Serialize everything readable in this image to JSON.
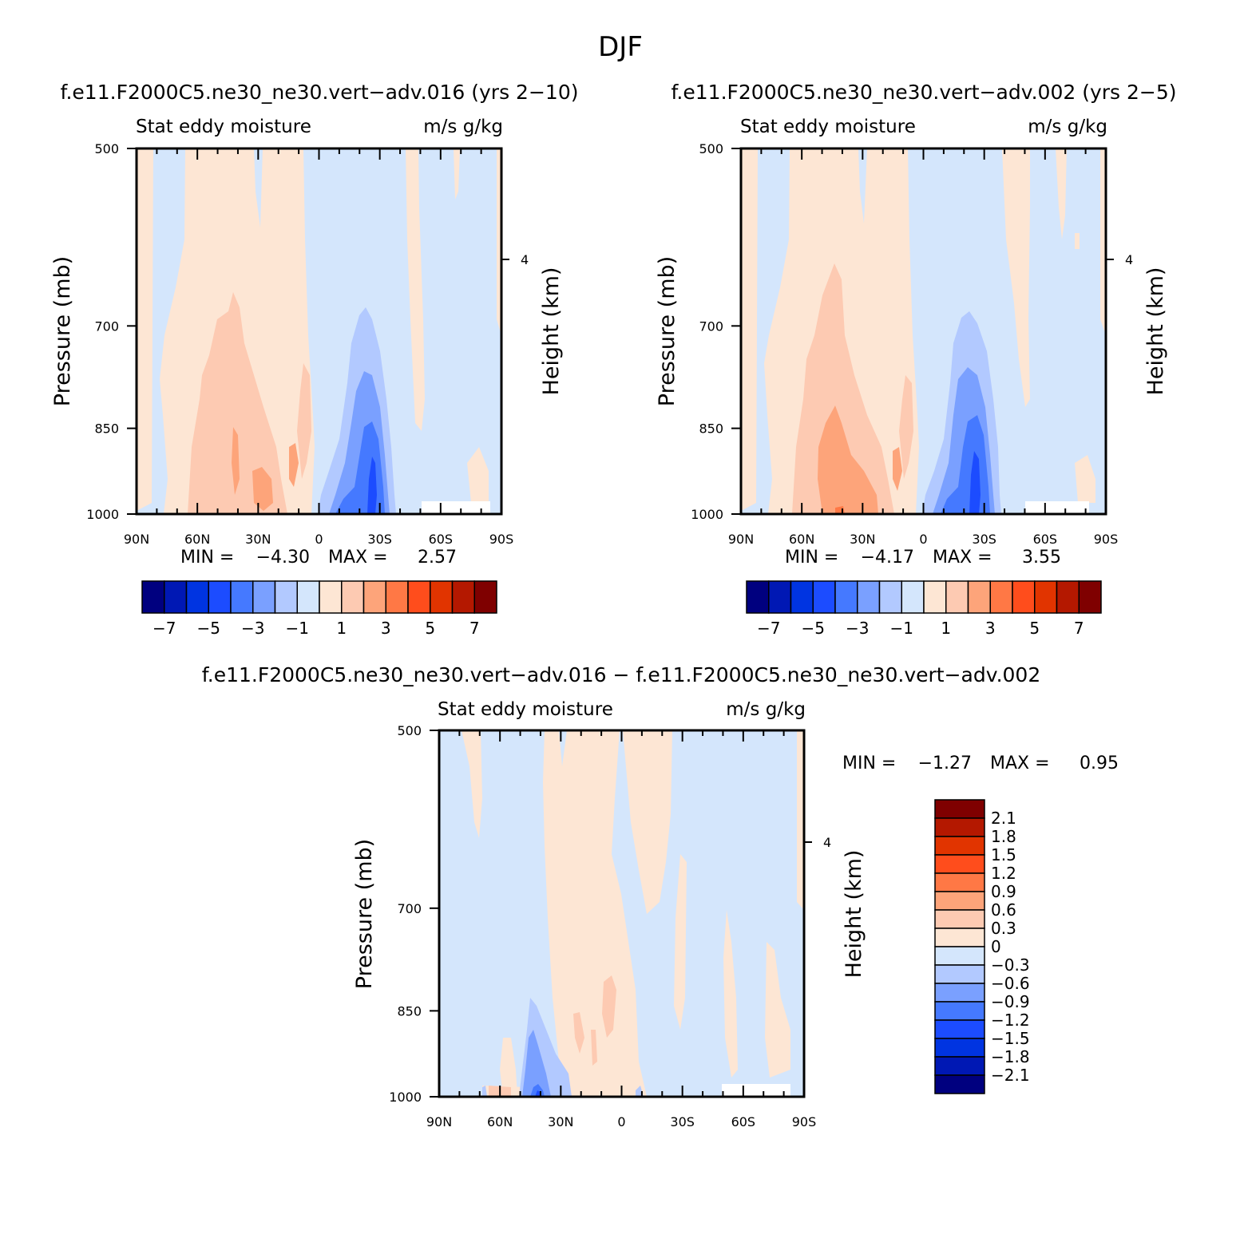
{
  "page_title": "DJF",
  "colors": {
    "blue": [
      "#00007f",
      "#0018b4",
      "#0034e1",
      "#1c4cff",
      "#4579ff",
      "#7aa0ff",
      "#b2c9ff",
      "#d4e6fc"
    ],
    "red": [
      "#fde6d4",
      "#fdcab2",
      "#fda47a",
      "#ff7845",
      "#ff4d1c",
      "#e13400",
      "#b41800",
      "#7f0000"
    ]
  },
  "chart_data": [
    {
      "id": "panel1",
      "type": "contour",
      "title": "f.e11.F2000C5.ne30_ne30.vert−adv.016 (yrs 2−10)",
      "subtitle_left": "Stat eddy moisture",
      "subtitle_right": "m/s g/kg",
      "ylabel": "Pressure (mb)",
      "ylabel2": "Height (km)",
      "xticks": [
        "90N",
        "60N",
        "30N",
        "0",
        "30S",
        "60S",
        "90S"
      ],
      "x_values": [
        90,
        60,
        30,
        0,
        -30,
        -60,
        -90
      ],
      "yticks": [
        "500",
        "700",
        "850",
        "1000"
      ],
      "y_values": [
        500,
        700,
        850,
        1000
      ],
      "height_ticks": [
        "4"
      ],
      "ylim": [
        1000,
        500
      ],
      "xlim": [
        90,
        -90
      ],
      "min_label": "MIN =",
      "min_value": "−4.30",
      "max_label": "MAX =",
      "max_value": "2.57",
      "levels": [
        "−7",
        "−5",
        "−3",
        "−1",
        "1",
        "3",
        "5",
        "7"
      ]
    },
    {
      "id": "panel2",
      "type": "contour",
      "title": "f.e11.F2000C5.ne30_ne30.vert−adv.002 (yrs 2−5)",
      "subtitle_left": "Stat eddy moisture",
      "subtitle_right": "m/s g/kg",
      "ylabel": "Pressure (mb)",
      "ylabel2": "Height (km)",
      "xticks": [
        "90N",
        "60N",
        "30N",
        "0",
        "30S",
        "60S",
        "90S"
      ],
      "x_values": [
        90,
        60,
        30,
        0,
        -30,
        -60,
        -90
      ],
      "yticks": [
        "500",
        "700",
        "850",
        "1000"
      ],
      "y_values": [
        500,
        700,
        850,
        1000
      ],
      "height_ticks": [
        "4"
      ],
      "ylim": [
        1000,
        500
      ],
      "xlim": [
        90,
        -90
      ],
      "min_label": "MIN =",
      "min_value": "−4.17",
      "max_label": "MAX =",
      "max_value": "3.55",
      "levels": [
        "−7",
        "−5",
        "−3",
        "−1",
        "1",
        "3",
        "5",
        "7"
      ]
    },
    {
      "id": "panel3",
      "type": "contour",
      "title": "f.e11.F2000C5.ne30_ne30.vert−adv.016 − f.e11.F2000C5.ne30_ne30.vert−adv.002",
      "subtitle_left": "Stat eddy moisture",
      "subtitle_right": "m/s g/kg",
      "ylabel": "Pressure (mb)",
      "ylabel2": "Height (km)",
      "xticks": [
        "90N",
        "60N",
        "30N",
        "0",
        "30S",
        "60S",
        "90S"
      ],
      "x_values": [
        90,
        60,
        30,
        0,
        -30,
        -60,
        -90
      ],
      "yticks": [
        "500",
        "700",
        "850",
        "1000"
      ],
      "y_values": [
        500,
        700,
        850,
        1000
      ],
      "height_ticks": [
        "4"
      ],
      "ylim": [
        1000,
        500
      ],
      "xlim": [
        90,
        -90
      ],
      "min_label": "MIN =",
      "min_value": "−1.27",
      "max_label": "MAX =",
      "max_value": "0.95",
      "levels": [
        "2.1",
        "1.8",
        "1.5",
        "1.2",
        "0.9",
        "0.6",
        "0.3",
        "0",
        "−0.3",
        "−0.6",
        "−0.9",
        "−1.2",
        "−1.5",
        "−1.8",
        "−2.1"
      ]
    }
  ]
}
